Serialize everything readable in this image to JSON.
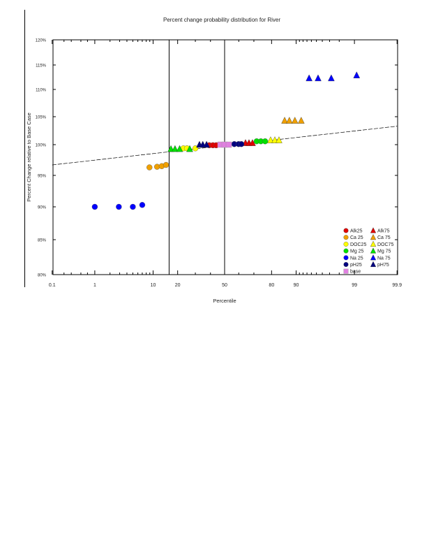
{
  "chart_data": {
    "type": "scatter",
    "title": "Percent change probability distribution for River",
    "xlabel": "Percentile",
    "ylabel": "Percent Change relative to Base Case",
    "x_scale": "normal-probability",
    "xlim": [
      0.1,
      99.9
    ],
    "ylim": [
      80,
      120
    ],
    "x_ticks": [
      0.1,
      1,
      10,
      20,
      50,
      80,
      90,
      99,
      99.9
    ],
    "x_tick_labels": [
      "0.1",
      "1",
      "10",
      "20",
      "50",
      "80",
      "90",
      "99",
      "99.9"
    ],
    "y_ticks": [
      120,
      115,
      110,
      105,
      100,
      95,
      90,
      85,
      80
    ],
    "y_tick_labels": [
      "120%",
      "115%",
      "110%",
      "105%",
      "100%",
      "95%",
      "90%",
      "85%",
      "80%"
    ],
    "vertical_reference_lines": [
      16,
      50
    ],
    "trend_line": {
      "x": [
        0.1,
        99.9
      ],
      "y": [
        96.7,
        103.3
      ]
    },
    "legend_position": "bottom-right",
    "series": [
      {
        "name": "Alk25",
        "marker": "circle",
        "color": "#e00000",
        "x": [
          39.2,
          41.7,
          44
        ],
        "y": [
          99.9,
          99.9,
          99.9
        ]
      },
      {
        "name": "Alk75",
        "marker": "triangle",
        "color": "#e00000",
        "x": [
          64.6,
          66.9,
          69.1
        ],
        "y": [
          100.3,
          100.3,
          100.3
        ]
      },
      {
        "name": "Ca 25",
        "marker": "circle",
        "color": "#f0a000",
        "x": [
          8.9,
          11.3,
          13,
          14.7
        ],
        "y": [
          96.3,
          96.4,
          96.5,
          96.7
        ]
      },
      {
        "name": "Ca 75",
        "marker": "triangle",
        "color": "#f0a000",
        "x": [
          85.9,
          87.7,
          89.6,
          91.5
        ],
        "y": [
          104.3,
          104.3,
          104.3,
          104.3
        ]
      },
      {
        "name": "DOC25",
        "marker": "circle",
        "color": "#ffff00",
        "x": [
          23,
          25,
          30
        ],
        "y": [
          99.4,
          99.4,
          99.4
        ]
      },
      {
        "name": "DOC75",
        "marker": "triangle",
        "color": "#ffff00",
        "x": [
          79.5,
          81.6,
          83.5
        ],
        "y": [
          100.8,
          100.8,
          100.8
        ]
      },
      {
        "name": "Mg 25",
        "marker": "circle",
        "color": "#00e000",
        "x": [
          71.7,
          74.2,
          76.6
        ],
        "y": [
          100.6,
          100.6,
          100.6
        ]
      },
      {
        "name": "Mg 75",
        "marker": "triangle",
        "color": "#00e000",
        "x": [
          16.8,
          18.7,
          21,
          26.6
        ],
        "y": [
          99.3,
          99.3,
          99.3,
          99.3
        ]
      },
      {
        "name": "Na 25",
        "marker": "circle",
        "color": "#0000ff",
        "x": [
          1,
          2.9,
          5,
          7
        ],
        "y": [
          90,
          90,
          90,
          90.3
        ]
      },
      {
        "name": "Na 75",
        "marker": "triangle",
        "color": "#0000ff",
        "x": [
          93.5,
          95.3,
          97.2,
          99.1
        ],
        "y": [
          112.3,
          112.3,
          112.3,
          112.9
        ]
      },
      {
        "name": "pH25",
        "marker": "circle",
        "color": "#000080",
        "x": [
          56.9,
          59.9,
          61.8
        ],
        "y": [
          100.1,
          100.1,
          100.1
        ]
      },
      {
        "name": "pH75",
        "marker": "triangle",
        "color": "#000080",
        "x": [
          32.6,
          34.8,
          37.3
        ],
        "y": [
          100,
          100,
          100
        ]
      },
      {
        "name": "base",
        "marker": "square",
        "color": "#e080e0",
        "x": [
          47,
          50,
          53
        ],
        "y": [
          100,
          100,
          100
        ]
      }
    ]
  }
}
